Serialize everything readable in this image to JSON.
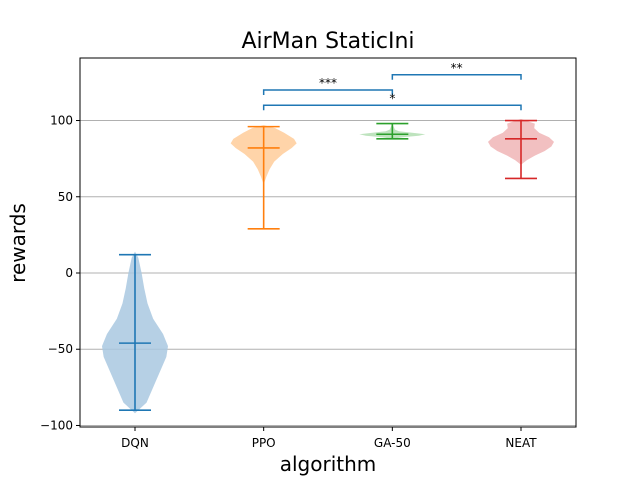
{
  "chart_data": {
    "type": "violin",
    "title": "AirMan StaticIni",
    "xlabel": "algorithm",
    "ylabel": "rewards",
    "categories": [
      "DQN",
      "PPO",
      "GA-50",
      "NEAT"
    ],
    "ylim": [
      -101,
      141
    ],
    "yticks": [
      -100,
      -50,
      0,
      50,
      100
    ],
    "ytick_labels": [
      "−100",
      "−50",
      "0",
      "50",
      "100"
    ],
    "grid": "y",
    "series": [
      {
        "category": "DQN",
        "color": "#1f77b4",
        "fill": "#a9c8e0",
        "min": -90,
        "max": 12,
        "median": -46,
        "density": [
          [
            -92,
            0.0
          ],
          [
            -85,
            0.35
          ],
          [
            -75,
            0.55
          ],
          [
            -65,
            0.75
          ],
          [
            -55,
            0.95
          ],
          [
            -48,
            1.0
          ],
          [
            -40,
            0.85
          ],
          [
            -30,
            0.55
          ],
          [
            -20,
            0.38
          ],
          [
            -10,
            0.28
          ],
          [
            0,
            0.2
          ],
          [
            10,
            0.1
          ],
          [
            14,
            0.0
          ]
        ]
      },
      {
        "category": "PPO",
        "color": "#ff7f0e",
        "fill": "#ffcc9a",
        "min": 29,
        "max": 96,
        "median": 82,
        "density": [
          [
            58,
            0.0
          ],
          [
            63,
            0.08
          ],
          [
            68,
            0.18
          ],
          [
            73,
            0.32
          ],
          [
            78,
            0.58
          ],
          [
            82,
            0.85
          ],
          [
            85,
            1.0
          ],
          [
            88,
            0.92
          ],
          [
            92,
            0.62
          ],
          [
            95,
            0.35
          ],
          [
            97,
            0.0
          ]
        ]
      },
      {
        "category": "GA-50",
        "color": "#2ca02c",
        "fill": "#b3deb3",
        "min": 88,
        "max": 98,
        "median": 91,
        "density": [
          [
            88,
            0.0
          ],
          [
            89,
            0.3
          ],
          [
            90,
            0.8
          ],
          [
            91,
            1.0
          ],
          [
            92,
            0.6
          ],
          [
            93,
            0.2
          ],
          [
            94,
            0.08
          ],
          [
            96,
            0.04
          ],
          [
            98,
            0.0
          ]
        ]
      },
      {
        "category": "NEAT",
        "color": "#d62728",
        "fill": "#f0b5b6",
        "min": 62,
        "max": 100,
        "median": 88,
        "density": [
          [
            71,
            0.0
          ],
          [
            74,
            0.18
          ],
          [
            77,
            0.42
          ],
          [
            80,
            0.72
          ],
          [
            83,
            0.92
          ],
          [
            86,
            1.0
          ],
          [
            89,
            0.85
          ],
          [
            92,
            0.55
          ],
          [
            95,
            0.4
          ],
          [
            98,
            0.42
          ],
          [
            101,
            0.0
          ]
        ]
      }
    ],
    "significance": [
      {
        "from": "PPO",
        "to": "GA-50",
        "label": "***",
        "y": 120
      },
      {
        "from": "GA-50",
        "to": "NEAT",
        "label": "**",
        "y": 130
      },
      {
        "from": "PPO",
        "to": "NEAT",
        "label": "*",
        "y": 110
      }
    ],
    "significance_color": "#1f77b4"
  }
}
